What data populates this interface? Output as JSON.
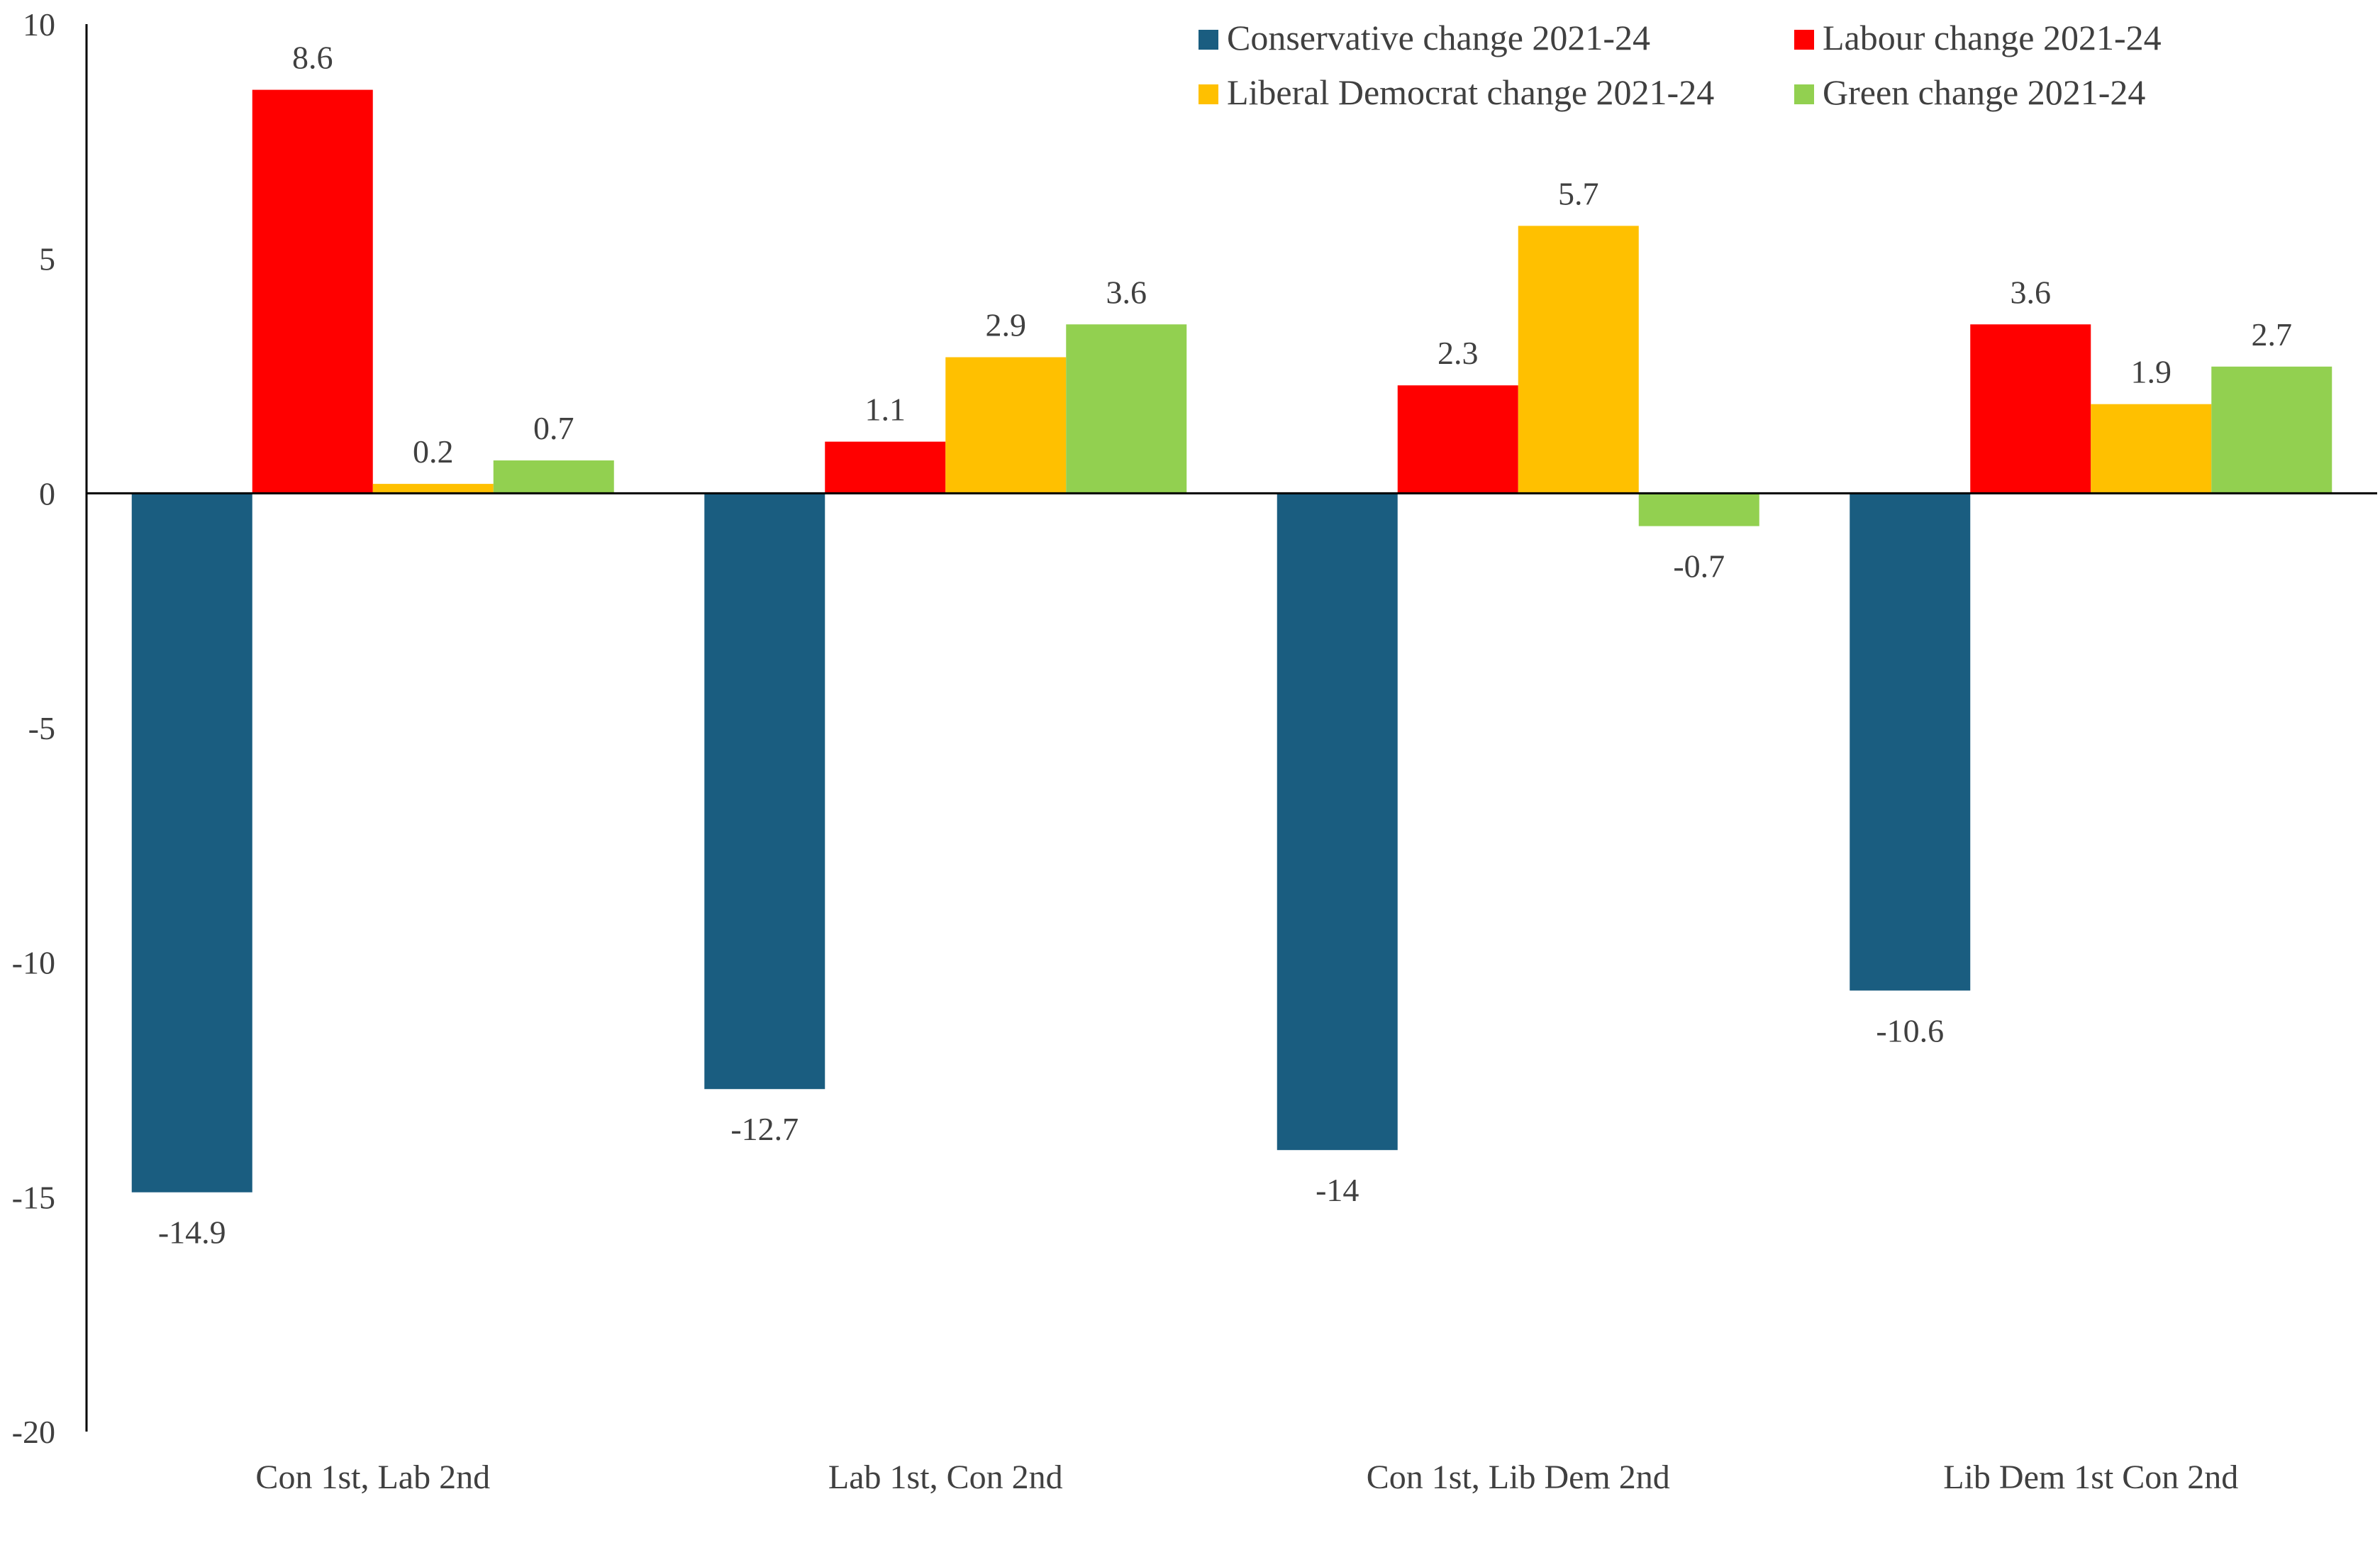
{
  "chart_data": {
    "type": "bar",
    "title": "",
    "xlabel": "",
    "ylabel": "",
    "ylim": [
      -20,
      10
    ],
    "yticks": [
      10,
      5,
      0,
      -5,
      -10,
      -15,
      -20
    ],
    "grid": false,
    "legend_position": "top-right",
    "categories": [
      "Con 1st, Lab 2nd",
      "Lab 1st, Con 2nd",
      "Con 1st, Lib Dem 2nd",
      "Lib Dem 1st Con 2nd"
    ],
    "series": [
      {
        "name": "Conservative change 2021-24",
        "color": "#1a5d80",
        "values": [
          -14.9,
          -12.7,
          -14,
          -10.6
        ]
      },
      {
        "name": "Labour change 2021-24",
        "color": "#ff0000",
        "values": [
          8.6,
          1.1,
          2.3,
          3.6
        ]
      },
      {
        "name": "Liberal Democrat change 2021-24",
        "color": "#ffc000",
        "values": [
          0.2,
          2.9,
          5.7,
          1.9
        ]
      },
      {
        "name": "Green change 2021-24",
        "color": "#92d050",
        "values": [
          0.7,
          3.6,
          -0.7,
          2.7
        ]
      }
    ]
  }
}
